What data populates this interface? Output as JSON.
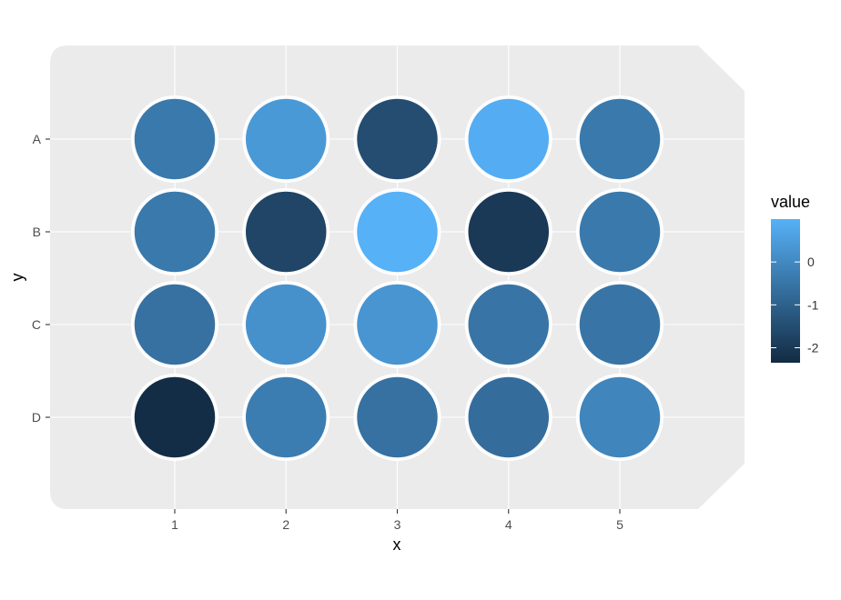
{
  "chart_data": {
    "type": "heatmap",
    "title": "",
    "xlabel": "x",
    "ylabel": "y",
    "x_categories": [
      "1",
      "2",
      "3",
      "4",
      "5"
    ],
    "y_categories": [
      "A",
      "B",
      "C",
      "D"
    ],
    "values": [
      [
        -0.4,
        0.4,
        -1.5,
        0.9,
        -0.4
      ],
      [
        -0.4,
        -1.7,
        1.0,
        -2.0,
        -0.4
      ],
      [
        -0.6,
        0.2,
        0.3,
        -0.5,
        -0.5
      ],
      [
        -2.3,
        -0.3,
        -0.6,
        -0.7,
        -0.1
      ]
    ],
    "legend": {
      "title": "value",
      "position": "right",
      "ticks": [
        "0",
        "-1",
        "-2"
      ],
      "tick_values": [
        0,
        -1,
        -2
      ],
      "range": [
        -2.35,
        1.0
      ],
      "low_color": "#132b43",
      "high_color": "#56b1f7"
    },
    "panel_color": "#ebebeb",
    "grid": true
  }
}
